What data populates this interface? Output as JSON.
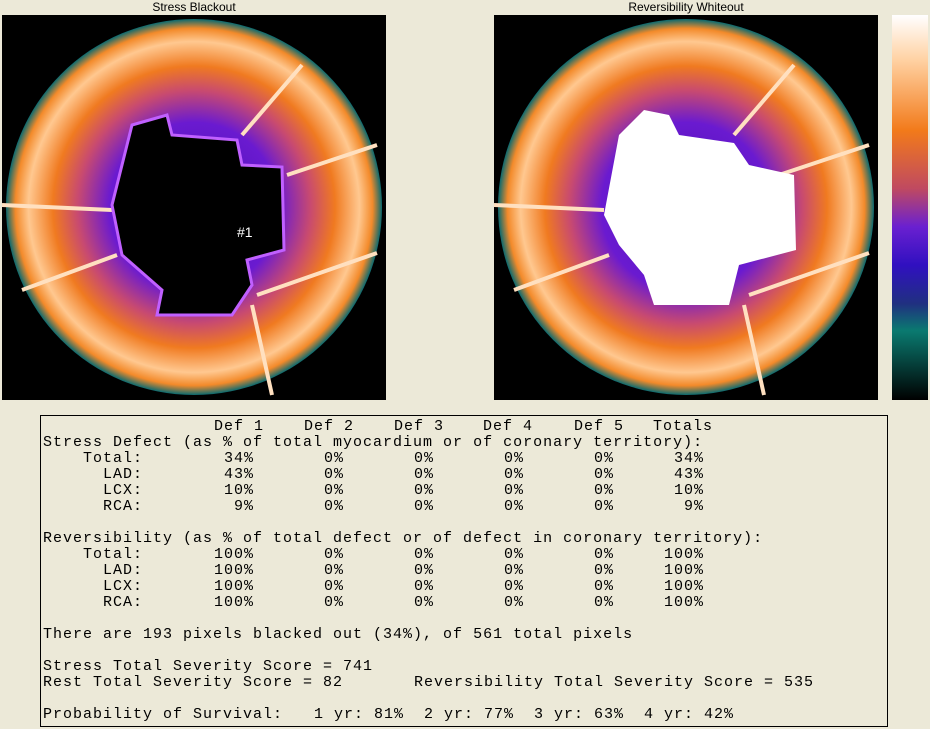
{
  "panels": [
    {
      "title": "Stress Blackout",
      "marker": "#1"
    },
    {
      "title": "Reversibility Whiteout"
    }
  ],
  "report": {
    "columns": [
      "Def 1",
      "Def 2",
      "Def 3",
      "Def 4",
      "Def 5",
      "Totals"
    ],
    "sections": [
      {
        "heading": "Stress Defect (as % of total myocardium or of coronary territory):",
        "rows": [
          {
            "label": "Total:",
            "values": [
              "34%",
              "0%",
              "0%",
              "0%",
              "0%",
              "34%"
            ]
          },
          {
            "label": "LAD:",
            "values": [
              "43%",
              "0%",
              "0%",
              "0%",
              "0%",
              "43%"
            ]
          },
          {
            "label": "LCX:",
            "values": [
              "10%",
              "0%",
              "0%",
              "0%",
              "0%",
              "10%"
            ]
          },
          {
            "label": "RCA:",
            "values": [
              "9%",
              "0%",
              "0%",
              "0%",
              "0%",
              "9%"
            ]
          }
        ]
      },
      {
        "heading": "Reversibility (as % of total defect or of defect in coronary territory):",
        "rows": [
          {
            "label": "Total:",
            "values": [
              "100%",
              "0%",
              "0%",
              "0%",
              "0%",
              "100%"
            ]
          },
          {
            "label": "LAD:",
            "values": [
              "100%",
              "0%",
              "0%",
              "0%",
              "0%",
              "100%"
            ]
          },
          {
            "label": "LCX:",
            "values": [
              "100%",
              "0%",
              "0%",
              "0%",
              "0%",
              "100%"
            ]
          },
          {
            "label": "RCA:",
            "values": [
              "100%",
              "0%",
              "0%",
              "0%",
              "0%",
              "100%"
            ]
          }
        ]
      }
    ],
    "pixels_line": "There are 193 pixels blacked out (34%), of 561 total pixels",
    "stress_score": "Stress Total Severity Score = 741",
    "rest_score": "Rest Total Severity Score = 82",
    "reversibility_score": "Reversibility Total Severity Score = 535",
    "survival": {
      "label": "Probability of Survival:",
      "items": [
        "1 yr: 81%",
        "2 yr: 77%",
        "3 yr: 63%",
        "4 yr: 42%"
      ]
    }
  }
}
